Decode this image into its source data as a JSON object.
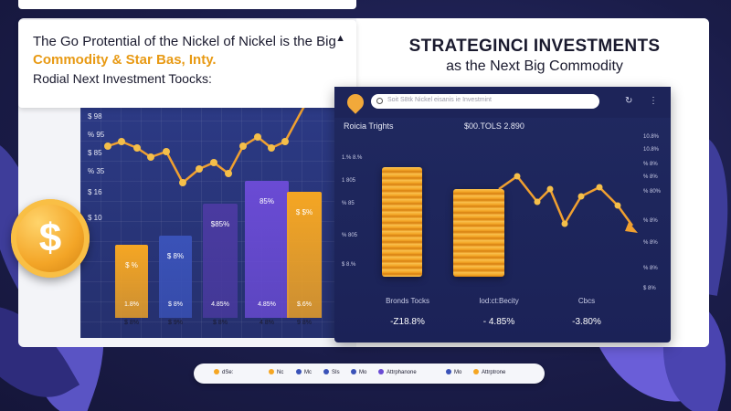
{
  "title_card": {
    "line1": "The Go Protential of the Nickel of Nickel is the Big",
    "line2": "Commodity & Star Bas, Inty.",
    "line3": "Rodial Next Investment Toocks:"
  },
  "right_heading": {
    "line1": "STRATEGINCI INVESTMENTS",
    "line2": "as the Next Big Commodity"
  },
  "left_chart": {
    "y_labels": [
      "$ 98",
      "% 95",
      "$ 85",
      "% 35",
      "$ 16",
      "$ 10"
    ],
    "bars": [
      {
        "top_label": "$ %",
        "bottom_label": "1.8%",
        "x_label": "$ 8%",
        "value": 0.32,
        "color": "#f5a623"
      },
      {
        "top_label": "$ 8%",
        "bottom_label": "$ 8%",
        "x_label": "$ 9%",
        "value": 0.36,
        "color": "#3a52b8"
      },
      {
        "top_label": "$85%",
        "bottom_label": "4.85%",
        "x_label": "$ 8%",
        "value": 0.5,
        "color": "#4a3aa0"
      },
      {
        "top_label": "85%",
        "bottom_label": "4.85%",
        "x_label": "4 8%",
        "value": 0.6,
        "color": "#6a4bd4"
      },
      {
        "top_label": "$ $%",
        "bottom_label": "$.6%",
        "x_label": "9 8%",
        "value": 0.55,
        "color": "#f5a623"
      }
    ]
  },
  "app": {
    "search_placeholder": "Soit S8tk Nickel eisanis ie Investmint",
    "subtitle_left": "Roicia Trights",
    "subtitle_right": "$00.TOLS 2.890",
    "y_left": [
      "1.% 8.%",
      "1 805",
      "% 85",
      "% 805",
      "$ 8.%"
    ],
    "y_right": [
      "10.8%",
      "10.8%",
      "% 8%",
      "% 8%",
      "% 80%",
      "% 8%",
      "% 8%",
      "% 8%",
      "$ 8%"
    ],
    "categories": [
      "Bronds Tocks",
      "Iod:ct:Becity",
      "Cbcs"
    ],
    "values": [
      "-Z18.8%",
      "- 4.85%",
      "-3.80%"
    ]
  },
  "bottom_pill": {
    "items": [
      "dSe:",
      "Nc",
      "Mc",
      "SIs",
      "Mo",
      "Attrphanone",
      "Mo",
      "Attrptrone"
    ]
  },
  "colors": {
    "navy": "#1a1c48",
    "orange": "#f5a623",
    "arrow": "#f0a030"
  },
  "icons": [
    "dollar-coin-icon",
    "search-icon",
    "refresh-icon",
    "menu-icon",
    "logo-icon",
    "trend-arrow-icon"
  ]
}
